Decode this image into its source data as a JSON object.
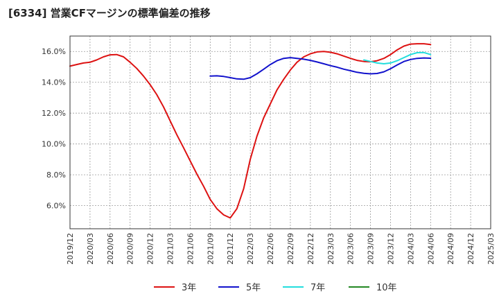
{
  "chart_data": {
    "type": "line",
    "title": "[6334]  営業CFマージンの標準偏差の推移",
    "xlabel": "",
    "ylabel": "",
    "x_categories": [
      "2019/12",
      "2020/03",
      "2020/06",
      "2020/09",
      "2020/12",
      "2021/03",
      "2021/06",
      "2021/09",
      "2021/12",
      "2022/03",
      "2022/06",
      "2022/09",
      "2022/12",
      "2023/03",
      "2023/06",
      "2023/09",
      "2023/12",
      "2024/03",
      "2024/06",
      "2024/09",
      "2024/12",
      "2025/03"
    ],
    "ylim": [
      4.5,
      17.0
    ],
    "yticks": [
      6.0,
      8.0,
      10.0,
      12.0,
      14.0,
      16.0
    ],
    "ytick_labels": [
      "6.0%",
      "8.0%",
      "10.0%",
      "12.0%",
      "14.0%",
      "16.0%"
    ],
    "grid": true,
    "legend_position": "bottom",
    "series": [
      {
        "name": "3年",
        "color": "#dd1111",
        "points": [
          [
            0,
            15.05
          ],
          [
            0.33,
            15.15
          ],
          [
            0.67,
            15.25
          ],
          [
            1,
            15.3
          ],
          [
            1.33,
            15.45
          ],
          [
            1.67,
            15.65
          ],
          [
            2,
            15.78
          ],
          [
            2.33,
            15.8
          ],
          [
            2.67,
            15.65
          ],
          [
            3,
            15.3
          ],
          [
            3.33,
            14.9
          ],
          [
            3.67,
            14.4
          ],
          [
            4,
            13.85
          ],
          [
            4.33,
            13.2
          ],
          [
            4.67,
            12.4
          ],
          [
            5,
            11.5
          ],
          [
            5.33,
            10.6
          ],
          [
            5.67,
            9.75
          ],
          [
            6,
            8.9
          ],
          [
            6.33,
            8.05
          ],
          [
            6.67,
            7.25
          ],
          [
            7,
            6.4
          ],
          [
            7.33,
            5.8
          ],
          [
            7.67,
            5.4
          ],
          [
            8,
            5.2
          ],
          [
            8.33,
            5.8
          ],
          [
            8.67,
            7.1
          ],
          [
            9,
            9.0
          ],
          [
            9.33,
            10.5
          ],
          [
            9.67,
            11.7
          ],
          [
            10,
            12.6
          ],
          [
            10.33,
            13.5
          ],
          [
            10.67,
            14.2
          ],
          [
            11,
            14.8
          ],
          [
            11.33,
            15.3
          ],
          [
            11.67,
            15.65
          ],
          [
            12,
            15.85
          ],
          [
            12.33,
            15.97
          ],
          [
            12.67,
            16.0
          ],
          [
            13,
            15.95
          ],
          [
            13.33,
            15.85
          ],
          [
            13.67,
            15.7
          ],
          [
            14,
            15.55
          ],
          [
            14.33,
            15.42
          ],
          [
            14.67,
            15.35
          ],
          [
            15,
            15.33
          ],
          [
            15.33,
            15.4
          ],
          [
            15.67,
            15.55
          ],
          [
            16,
            15.8
          ],
          [
            16.33,
            16.1
          ],
          [
            16.67,
            16.35
          ],
          [
            17,
            16.48
          ],
          [
            17.33,
            16.5
          ],
          [
            17.67,
            16.5
          ],
          [
            18,
            16.45
          ]
        ]
      },
      {
        "name": "5年",
        "color": "#1111cc",
        "points": [
          [
            7,
            14.4
          ],
          [
            7.33,
            14.42
          ],
          [
            7.67,
            14.38
          ],
          [
            8,
            14.3
          ],
          [
            8.33,
            14.22
          ],
          [
            8.67,
            14.2
          ],
          [
            9,
            14.3
          ],
          [
            9.33,
            14.55
          ],
          [
            9.67,
            14.85
          ],
          [
            10,
            15.15
          ],
          [
            10.33,
            15.4
          ],
          [
            10.67,
            15.55
          ],
          [
            11,
            15.6
          ],
          [
            11.33,
            15.55
          ],
          [
            11.67,
            15.5
          ],
          [
            12,
            15.42
          ],
          [
            12.33,
            15.32
          ],
          [
            12.67,
            15.2
          ],
          [
            13,
            15.08
          ],
          [
            13.33,
            14.98
          ],
          [
            13.67,
            14.85
          ],
          [
            14,
            14.75
          ],
          [
            14.33,
            14.65
          ],
          [
            14.67,
            14.58
          ],
          [
            15,
            14.55
          ],
          [
            15.33,
            14.57
          ],
          [
            15.67,
            14.68
          ],
          [
            16,
            14.88
          ],
          [
            16.33,
            15.12
          ],
          [
            16.67,
            15.35
          ],
          [
            17,
            15.48
          ],
          [
            17.33,
            15.55
          ],
          [
            17.67,
            15.58
          ],
          [
            18,
            15.56
          ]
        ]
      },
      {
        "name": "7年",
        "color": "#22dddd",
        "points": [
          [
            14.67,
            15.45
          ],
          [
            15,
            15.35
          ],
          [
            15.33,
            15.25
          ],
          [
            15.67,
            15.2
          ],
          [
            16,
            15.25
          ],
          [
            16.33,
            15.4
          ],
          [
            16.67,
            15.6
          ],
          [
            17,
            15.8
          ],
          [
            17.33,
            15.92
          ],
          [
            17.67,
            15.93
          ],
          [
            18,
            15.8
          ]
        ]
      },
      {
        "name": "10年",
        "color": "#228822",
        "points": []
      }
    ]
  }
}
